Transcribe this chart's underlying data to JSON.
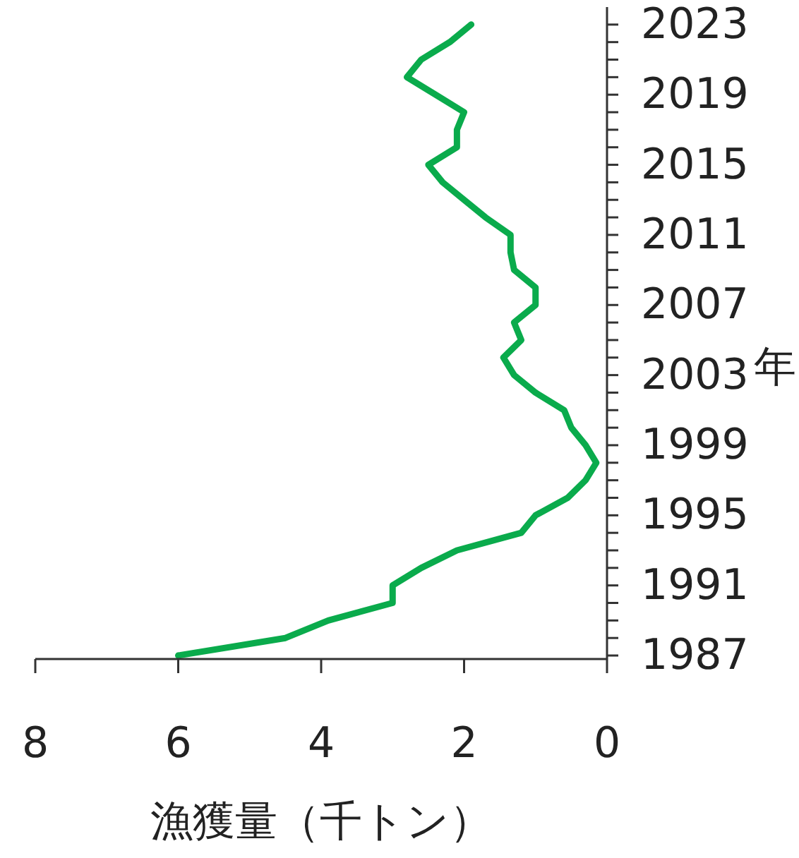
{
  "chart_data": {
    "type": "line",
    "orientation": "horizontal",
    "xlabel": "漁獲量（千トン）",
    "ylabel": "年",
    "x": [
      1987,
      1988,
      1989,
      1990,
      1991,
      1992,
      1993,
      1994,
      1995,
      1996,
      1997,
      1998,
      1999,
      2000,
      2001,
      2002,
      2003,
      2004,
      2005,
      2006,
      2007,
      2008,
      2009,
      2010,
      2011,
      2012,
      2013,
      2014,
      2015,
      2016,
      2017,
      2018,
      2019,
      2020,
      2021,
      2022,
      2023
    ],
    "series": [
      {
        "color": "#0aab4c",
        "values": [
          6.0,
          4.5,
          3.9,
          3.0,
          3.0,
          2.6,
          2.1,
          1.2,
          1.0,
          0.55,
          0.3,
          0.15,
          0.3,
          0.5,
          0.6,
          1.0,
          1.3,
          1.45,
          1.2,
          1.3,
          1.0,
          1.0,
          1.3,
          1.35,
          1.35,
          1.7,
          2.0,
          2.3,
          2.5,
          2.1,
          2.1,
          2.0,
          2.4,
          2.8,
          2.6,
          2.2,
          1.9
        ]
      }
    ],
    "xlim": [
      8,
      0
    ],
    "xticks": [
      8,
      6,
      4,
      2,
      0
    ],
    "ylim": [
      1986.8,
      2024
    ],
    "yticks": [
      1987,
      {
        "value": 1988,
        "label": null
      },
      {
        "value": 1989,
        "label": null
      },
      {
        "value": 1990,
        "label": null
      },
      1991,
      {
        "value": 1992,
        "label": null
      },
      {
        "value": 1993,
        "label": null
      },
      {
        "value": 1994,
        "label": null
      },
      1995,
      {
        "value": 1996,
        "label": null
      },
      {
        "value": 1997,
        "label": null
      },
      {
        "value": 1998,
        "label": null
      },
      1999,
      {
        "value": 2000,
        "label": null
      },
      {
        "value": 2001,
        "label": null
      },
      {
        "value": 2002,
        "label": null
      },
      2003,
      {
        "value": 2004,
        "label": null
      },
      {
        "value": 2005,
        "label": null
      },
      {
        "value": 2006,
        "label": null
      },
      2007,
      {
        "value": 2008,
        "label": null
      },
      {
        "value": 2009,
        "label": null
      },
      {
        "value": 2010,
        "label": null
      },
      2011,
      {
        "value": 2012,
        "label": null
      },
      {
        "value": 2013,
        "label": null
      },
      {
        "value": 2014,
        "label": null
      },
      2015,
      {
        "value": 2016,
        "label": null
      },
      {
        "value": 2017,
        "label": null
      },
      {
        "value": 2018,
        "label": null
      },
      2019,
      {
        "value": 2020,
        "label": null
      },
      {
        "value": 2021,
        "label": null
      },
      {
        "value": 2022,
        "label": null
      },
      2023
    ],
    "grid": false,
    "legend": false,
    "line_style": "solid",
    "marker": "none"
  }
}
